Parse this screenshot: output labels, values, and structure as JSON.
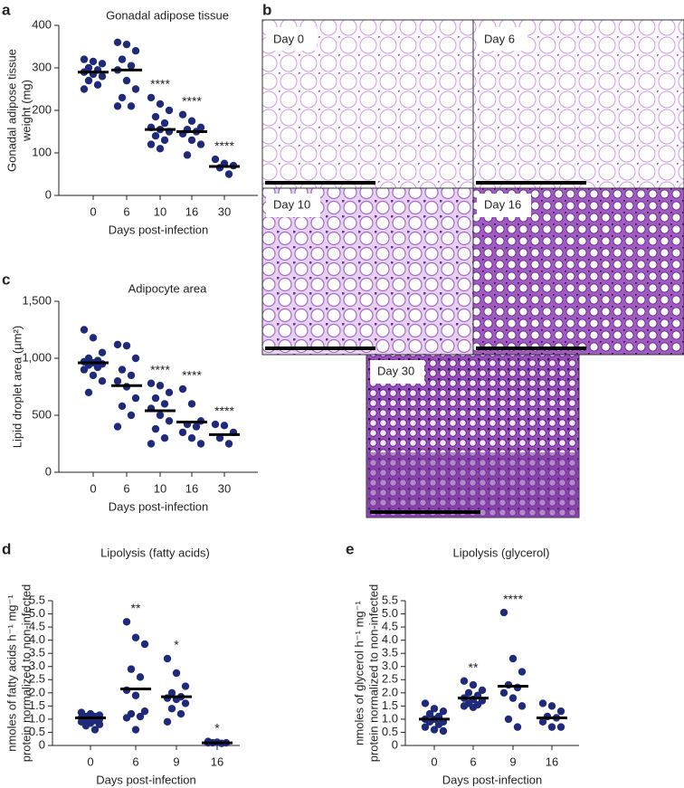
{
  "chart_data": [
    {
      "type": "strip",
      "panel": "a",
      "title": "Gonadal adipose tissue",
      "ylabel": [
        "Gonadal adipose tissue",
        "weight (mg)"
      ],
      "xlabel": "Days post-infection",
      "categories": [
        "0",
        "6",
        "10",
        "16",
        "30"
      ],
      "groups": [
        [
          320,
          315,
          310,
          300,
          295,
          290,
          285,
          280,
          270,
          260,
          250
        ],
        [
          360,
          355,
          340,
          320,
          305,
          295,
          270,
          250,
          230,
          210,
          210
        ],
        [
          230,
          215,
          200,
          185,
          170,
          160,
          155,
          150,
          140,
          130,
          120,
          110
        ],
        [
          190,
          175,
          160,
          155,
          150,
          145,
          130,
          120,
          95
        ],
        [
          85,
          75,
          70,
          65,
          50
        ]
      ],
      "medians": [
        290,
        295,
        155,
        150,
        68
      ],
      "annotations": [
        null,
        null,
        "****",
        "****",
        "****"
      ],
      "color": "#1f2a7a",
      "ylim": [
        0,
        400
      ],
      "yticks": [
        0,
        100,
        200,
        300,
        400
      ]
    },
    {
      "type": "strip",
      "panel": "c",
      "title": "Adipocyte area",
      "ylabel": [
        "Lipid droplet area (µm²)"
      ],
      "xlabel": "Days post-infection",
      "categories": [
        "0",
        "6",
        "10",
        "16",
        "30"
      ],
      "groups": [
        [
          1250,
          1180,
          1050,
          1000,
          980,
          970,
          960,
          950,
          940,
          920,
          900,
          850,
          800,
          700
        ],
        [
          1120,
          1110,
          1000,
          900,
          850,
          800,
          750,
          650,
          580,
          500,
          400
        ],
        [
          780,
          760,
          700,
          650,
          600,
          560,
          500,
          450,
          380,
          300,
          250
        ],
        [
          730,
          600,
          450,
          420,
          400,
          350,
          300,
          250
        ],
        [
          420,
          410,
          350,
          300,
          250
        ]
      ],
      "medians": [
        960,
        760,
        540,
        440,
        330
      ],
      "annotations": [
        null,
        null,
        "****",
        "****",
        "****"
      ],
      "color": "#1f2a7a",
      "ylim": [
        0,
        1500
      ],
      "yticks": [
        0,
        500,
        {
          "value": 1000,
          "label": "1,000"
        },
        {
          "value": 1500,
          "label": "1,500"
        }
      ]
    },
    {
      "type": "strip",
      "panel": "d",
      "title": "Lipolysis (fatty acids)",
      "ylabel": [
        "nmoles of fatty acids h⁻¹ mg⁻¹",
        "protein normalized to non-infected"
      ],
      "xlabel": "Days post-infection",
      "categories": [
        "0",
        "6",
        "9",
        "16"
      ],
      "groups": [
        [
          1.25,
          1.2,
          1.15,
          1.1,
          1.1,
          1.05,
          1.05,
          1.0,
          1.0,
          0.95,
          0.9,
          0.85,
          0.8,
          0.75,
          0.6
        ],
        [
          4.7,
          4.1,
          3.85,
          2.9,
          2.6,
          2.1,
          1.9,
          1.3,
          1.2,
          1.1,
          1.05,
          0.6
        ],
        [
          3.3,
          2.75,
          2.25,
          2.0,
          1.85,
          1.8,
          1.75,
          1.6,
          1.4,
          1.2,
          0.9
        ],
        [
          0.15,
          0.12,
          0.1,
          0.1,
          0.08,
          0.1
        ]
      ],
      "medians": [
        1.05,
        2.15,
        1.85,
        0.1
      ],
      "annotations": [
        null,
        "**",
        "*",
        "*"
      ],
      "color": "#1f2a7a",
      "ylim": [
        0,
        5.5
      ],
      "yticks": [
        0,
        0.5,
        {
          "value": 1,
          "label": "1.0"
        },
        1.5,
        {
          "value": 2,
          "label": "2.0"
        },
        2.5,
        {
          "value": 3,
          "label": "3.0"
        },
        3.5,
        {
          "value": 4,
          "label": "4.0"
        },
        4.5,
        {
          "value": 5,
          "label": "5.0"
        },
        5.5
      ]
    },
    {
      "type": "strip",
      "panel": "e",
      "title": "Lipolysis (glycerol)",
      "ylabel": [
        "nmoles of glycerol h⁻¹ mg⁻¹",
        "protein normalized to non-infected"
      ],
      "xlabel": "Days post-infection",
      "categories": [
        "0",
        "6",
        "9",
        "16"
      ],
      "groups": [
        [
          1.6,
          1.4,
          1.3,
          1.2,
          1.1,
          1.0,
          1.0,
          0.9,
          0.9,
          0.8,
          0.7,
          0.6,
          0.55
        ],
        [
          2.45,
          2.3,
          2.1,
          2.0,
          1.9,
          1.8,
          1.75,
          1.7,
          1.6,
          1.55,
          1.5,
          1.45
        ],
        [
          5.05,
          3.3,
          2.8,
          2.3,
          2.2,
          2.0,
          1.8,
          1.5,
          1.0,
          0.7
        ],
        [
          1.6,
          1.5,
          1.3,
          1.1,
          1.05,
          0.9,
          0.7,
          0.7
        ]
      ],
      "medians": [
        1.0,
        1.8,
        2.25,
        1.05
      ],
      "annotations": [
        null,
        "**",
        "****",
        null
      ],
      "color": "#1f2a7a",
      "ylim": [
        0,
        5.5
      ],
      "yticks": [
        0,
        0.5,
        {
          "value": 1,
          "label": "1.0"
        },
        1.5,
        {
          "value": 2,
          "label": "2.0"
        },
        2.5,
        {
          "value": 3,
          "label": "3.0"
        },
        3.5,
        {
          "value": 4,
          "label": "4.0"
        },
        4.5,
        {
          "value": 5,
          "label": "5.0"
        },
        5.5
      ]
    }
  ],
  "micrographs": {
    "panel": "b",
    "labels": [
      "Day 0",
      "Day 6",
      "Day 10",
      "Day 16",
      "Day 30"
    ]
  }
}
